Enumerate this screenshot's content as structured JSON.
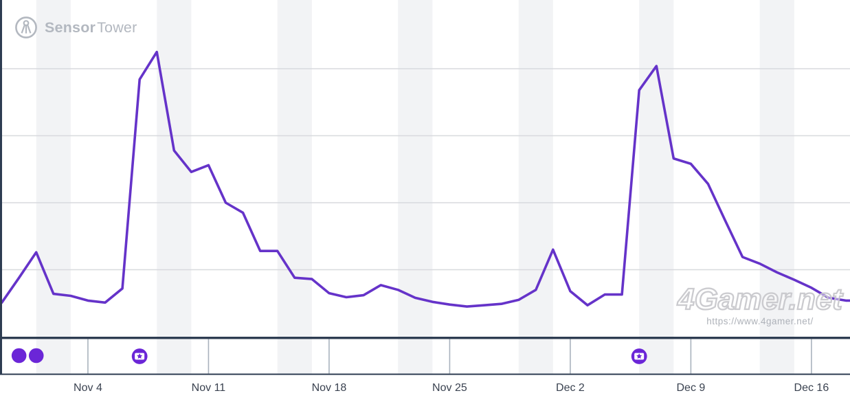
{
  "branding": {
    "name_bold": "Sensor",
    "name_light": "Tower"
  },
  "watermark": {
    "site": "4Gamer.net",
    "url": "https://www.4gamer.net/"
  },
  "colors": {
    "line": "#6533c9",
    "marker": "#6b26d7",
    "weekend_band": "#f2f3f5",
    "gridline": "#d8dade",
    "axis": "#2e3d52",
    "strip_tick": "#a9b2bd",
    "label_text": "#3a4250",
    "logo_gray": "#b3b8c0"
  },
  "chart_data": {
    "type": "line",
    "title": "",
    "x": [
      "Oct 30",
      "Oct 31",
      "Nov 1",
      "Nov 2",
      "Nov 3",
      "Nov 4",
      "Nov 5",
      "Nov 6",
      "Nov 7",
      "Nov 8",
      "Nov 9",
      "Nov 10",
      "Nov 11",
      "Nov 12",
      "Nov 13",
      "Nov 14",
      "Nov 15",
      "Nov 16",
      "Nov 17",
      "Nov 18",
      "Nov 19",
      "Nov 20",
      "Nov 21",
      "Nov 22",
      "Nov 23",
      "Nov 24",
      "Nov 25",
      "Nov 26",
      "Nov 27",
      "Nov 28",
      "Nov 29",
      "Nov 30",
      "Dec 1",
      "Dec 2",
      "Dec 3",
      "Dec 4",
      "Dec 5",
      "Dec 6",
      "Dec 7",
      "Dec 8",
      "Dec 9",
      "Dec 10",
      "Dec 11",
      "Dec 12",
      "Dec 13",
      "Dec 14",
      "Dec 15",
      "Dec 16",
      "Dec 17",
      "Dec 18"
    ],
    "series": [
      {
        "color": "#6533c9",
        "values": [
          0.51,
          0.88,
          1.26,
          0.64,
          0.61,
          0.54,
          0.51,
          0.72,
          3.84,
          4.25,
          2.78,
          2.46,
          2.56,
          2.0,
          1.85,
          1.28,
          1.28,
          0.88,
          0.86,
          0.65,
          0.59,
          0.62,
          0.77,
          0.7,
          0.58,
          0.52,
          0.48,
          0.45,
          0.47,
          0.49,
          0.55,
          0.7,
          1.3,
          0.68,
          0.47,
          0.63,
          0.63,
          3.68,
          4.04,
          2.66,
          2.58,
          2.28,
          1.73,
          1.19,
          1.09,
          0.96,
          0.85,
          0.73,
          0.58,
          0.54
        ]
      }
    ],
    "x_tick_labels": [
      "Nov 4",
      "Nov 11",
      "Nov 18",
      "Nov 25",
      "Dec 2",
      "Dec 9",
      "Dec 16"
    ],
    "y_axis": {
      "labels_visible": false,
      "unit": "relative (1.0 = one gridline)",
      "ylim": [
        0,
        5.03
      ],
      "gridlines": [
        1,
        2,
        3,
        4
      ]
    },
    "legend": "none",
    "weekend_band_dates": [
      "Nov 1",
      "Nov 8",
      "Nov 15",
      "Nov 22",
      "Nov 29",
      "Dec 6",
      "Dec 13"
    ],
    "band_span_days": 2,
    "events": [
      {
        "date": "Oct 31",
        "type": "event-dot"
      },
      {
        "date": "Nov 1",
        "type": "event-dot"
      },
      {
        "date": "Nov 7",
        "type": "featured-badge"
      },
      {
        "date": "Dec 6",
        "type": "featured-badge"
      }
    ]
  }
}
